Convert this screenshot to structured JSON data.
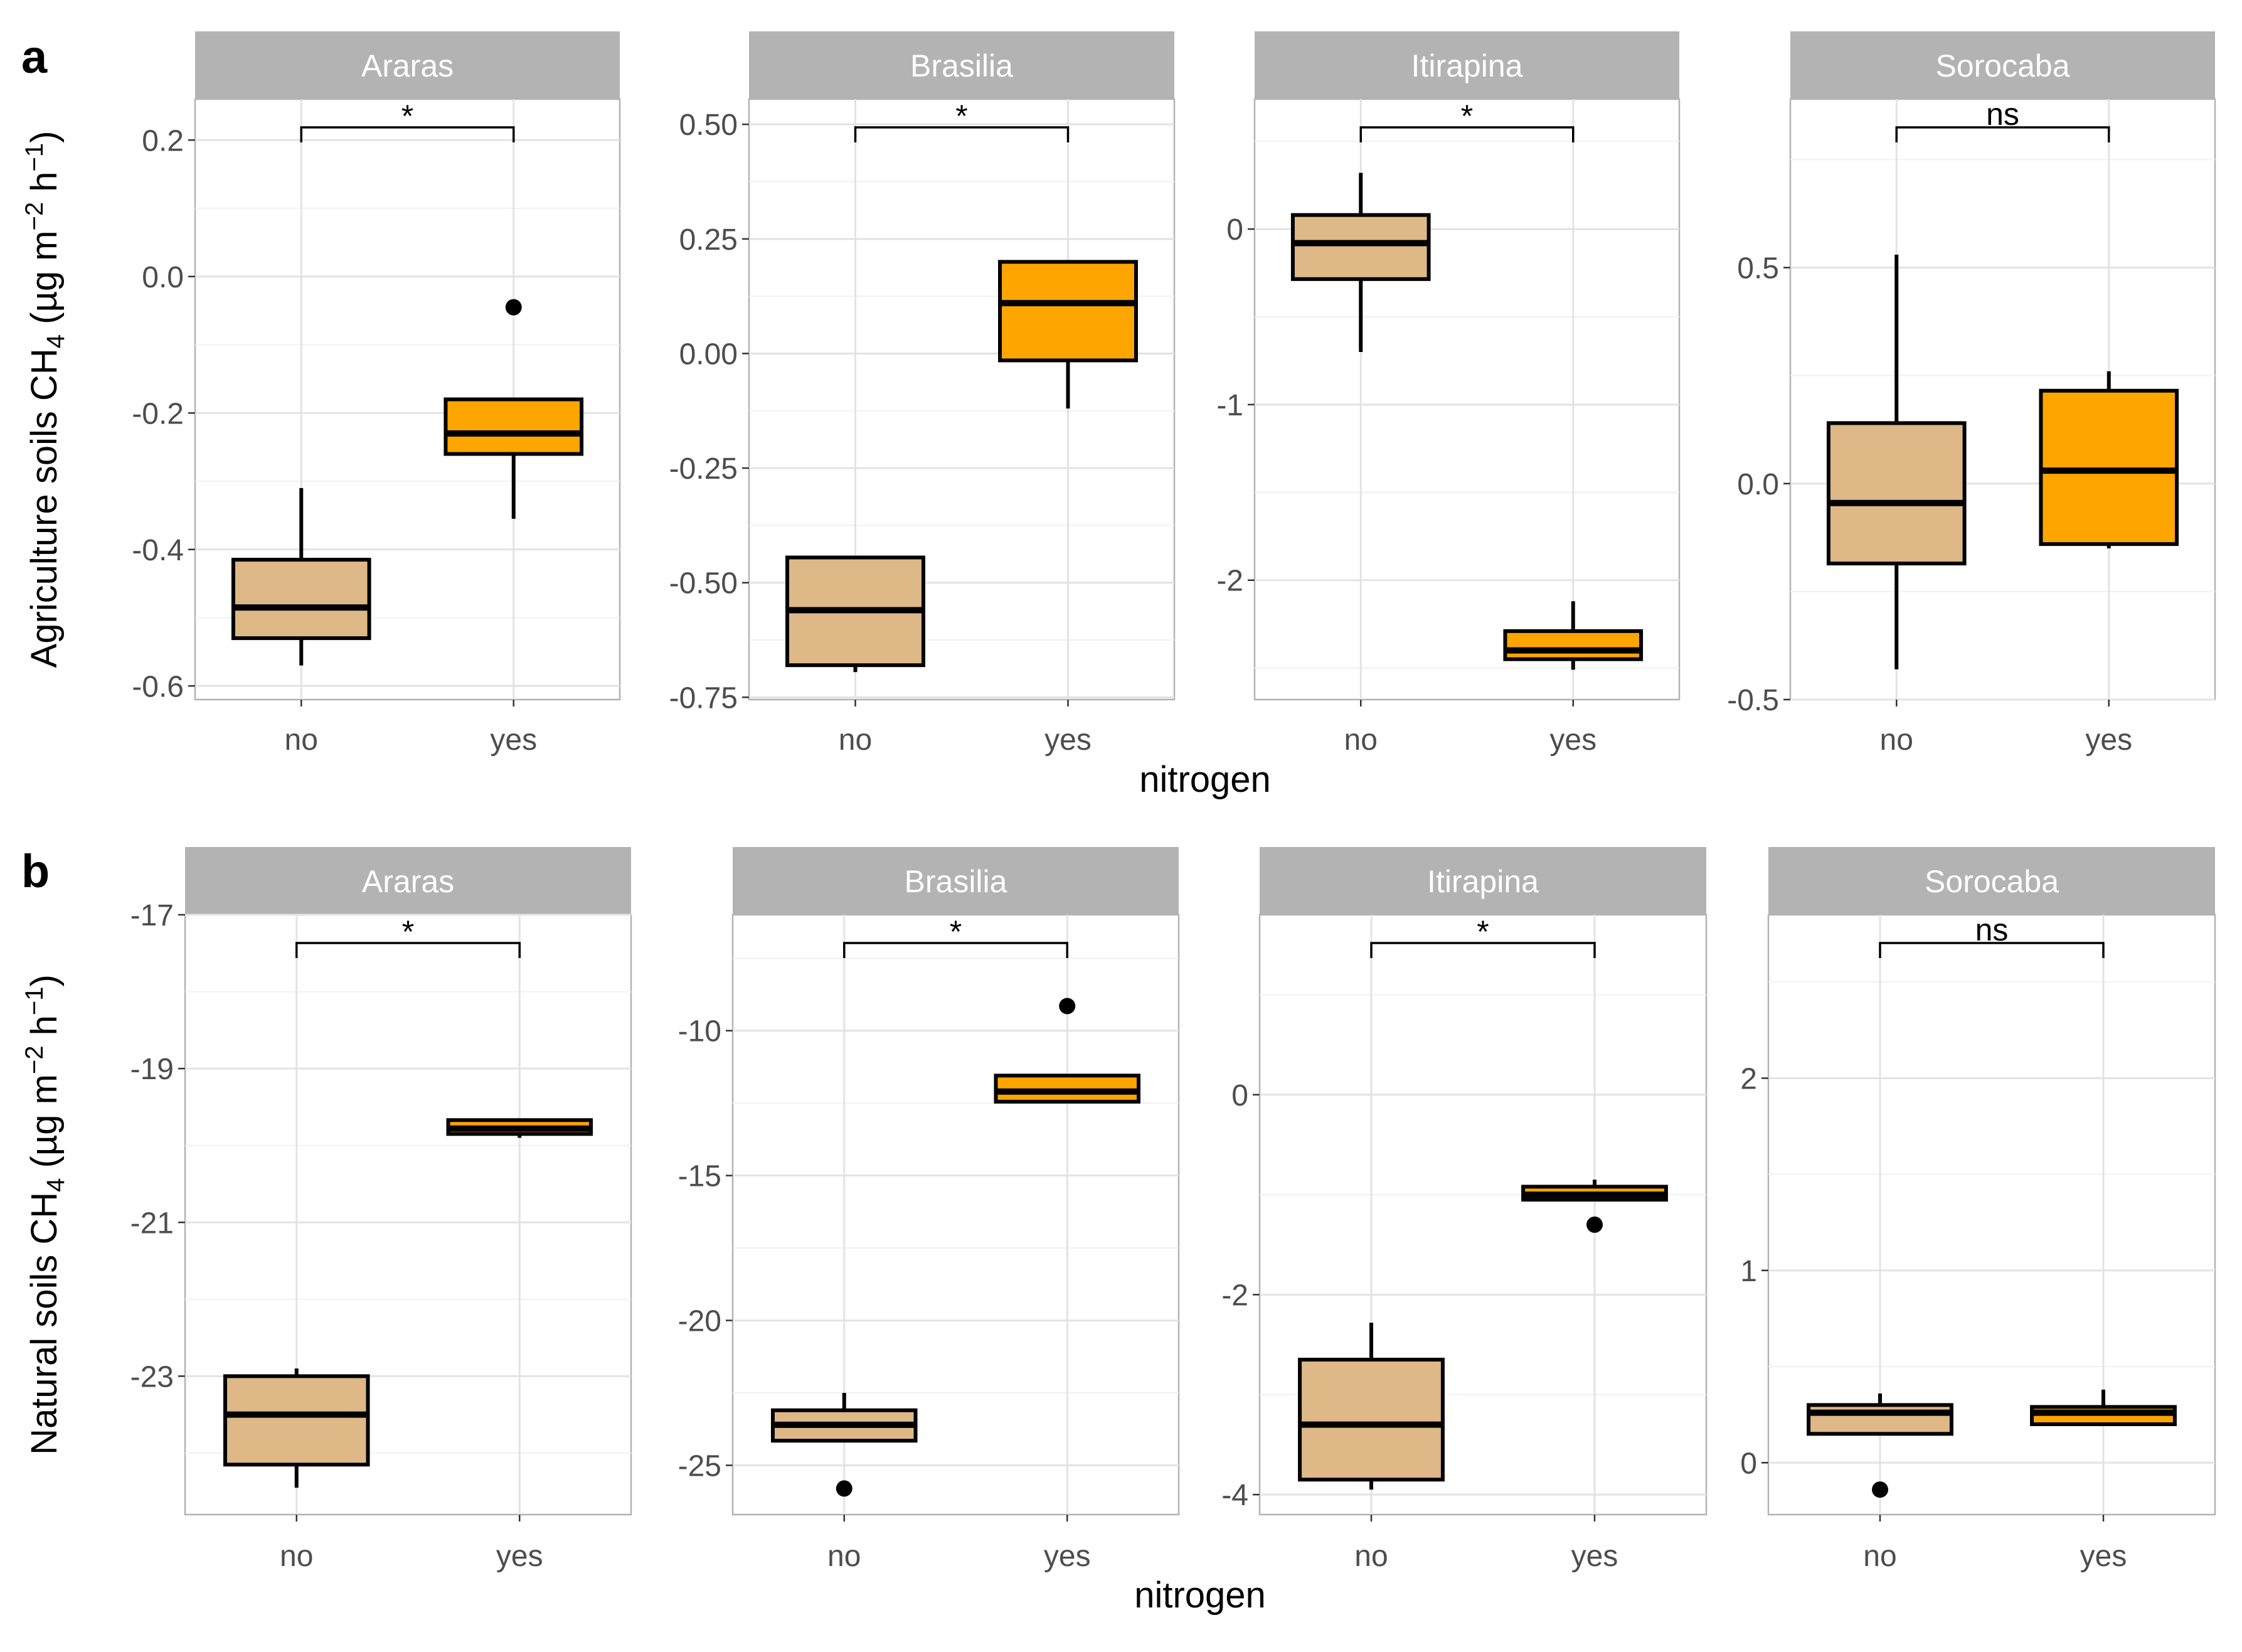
{
  "chart_data": [
    {
      "type": "box",
      "panel_label": "a",
      "ylabel": "Agriculture soils CH4 (µg m−2 h−1)",
      "xlabel": "nitrogen",
      "categories": [
        "no",
        "yes"
      ],
      "facets": [
        {
          "title": "Araras",
          "ylim": [
            -0.62,
            0.26
          ],
          "yticks": [
            -0.6,
            -0.4,
            -0.2,
            0.0,
            0.2
          ],
          "ytick_labels": [
            "-0.6",
            "-0.4",
            "-0.2",
            "0.0",
            "0.2"
          ],
          "groups": [
            {
              "nitrogen": "no",
              "min": -0.57,
              "q1": -0.53,
              "median": -0.485,
              "q3": -0.415,
              "max": -0.31,
              "outliers": []
            },
            {
              "nitrogen": "yes",
              "min": -0.355,
              "q1": -0.26,
              "median": -0.23,
              "q3": -0.18,
              "max": -0.18,
              "outliers": [
                -0.045
              ]
            }
          ],
          "significance": "*"
        },
        {
          "title": "Brasilia",
          "ylim": [
            -0.755,
            0.555
          ],
          "yticks": [
            -0.75,
            -0.5,
            -0.25,
            0.0,
            0.25,
            0.5
          ],
          "ytick_labels": [
            "-0.75",
            "-0.50",
            "-0.25",
            "0.00",
            "0.25",
            "0.50"
          ],
          "groups": [
            {
              "nitrogen": "no",
              "min": -0.695,
              "q1": -0.68,
              "median": -0.56,
              "q3": -0.445,
              "max": -0.445,
              "outliers": []
            },
            {
              "nitrogen": "yes",
              "min": -0.12,
              "q1": -0.015,
              "median": 0.11,
              "q3": 0.2,
              "max": 0.2,
              "outliers": []
            }
          ],
          "significance": "*"
        },
        {
          "title": "Itirapina",
          "ylim": [
            -2.68,
            0.74
          ],
          "yticks": [
            -2,
            -1,
            0
          ],
          "ytick_labels": [
            "-2",
            "-1",
            "0"
          ],
          "groups": [
            {
              "nitrogen": "no",
              "min": -0.7,
              "q1": -0.285,
              "median": -0.08,
              "q3": 0.08,
              "max": 0.32,
              "outliers": []
            },
            {
              "nitrogen": "yes",
              "min": -2.51,
              "q1": -2.45,
              "median": -2.4,
              "q3": -2.29,
              "max": -2.12,
              "outliers": []
            }
          ],
          "significance": "*"
        },
        {
          "title": "Sorocaba",
          "ylim": [
            -0.5,
            0.89
          ],
          "yticks": [
            -0.5,
            0.0,
            0.5
          ],
          "ytick_labels": [
            "-0.5",
            "0.0",
            "0.5"
          ],
          "groups": [
            {
              "nitrogen": "no",
              "min": -0.43,
              "q1": -0.185,
              "median": -0.045,
              "q3": 0.14,
              "max": 0.53,
              "outliers": []
            },
            {
              "nitrogen": "yes",
              "min": -0.15,
              "q1": -0.14,
              "median": 0.03,
              "q3": 0.215,
              "max": 0.26,
              "outliers": []
            }
          ],
          "significance": "ns"
        }
      ]
    },
    {
      "type": "box",
      "panel_label": "b",
      "ylabel": "Natural soils CH4 (µg m−2 h−1)",
      "xlabel": "nitrogen",
      "categories": [
        "no",
        "yes"
      ],
      "facets": [
        {
          "title": "Araras",
          "ylim": [
            -24.8,
            -17.0
          ],
          "yticks": [
            -23,
            -21,
            -19,
            -17
          ],
          "ytick_labels": [
            "-23",
            "-21",
            "-19",
            "-17"
          ],
          "groups": [
            {
              "nitrogen": "no",
              "min": -24.45,
              "q1": -24.15,
              "median": -23.5,
              "q3": -23.0,
              "max": -22.9,
              "outliers": []
            },
            {
              "nitrogen": "yes",
              "min": -19.9,
              "q1": -19.85,
              "median": -19.78,
              "q3": -19.67,
              "max": -19.67,
              "outliers": []
            }
          ],
          "significance": "*"
        },
        {
          "title": "Brasilia",
          "ylim": [
            -26.7,
            -6.0
          ],
          "yticks": [
            -25,
            -20,
            -15,
            -10
          ],
          "ytick_labels": [
            "-25",
            "-20",
            "-15",
            "-10"
          ],
          "groups": [
            {
              "nitrogen": "no",
              "min": -24.2,
              "q1": -24.15,
              "median": -23.6,
              "q3": -23.1,
              "max": -22.5,
              "outliers": [
                -25.8
              ]
            },
            {
              "nitrogen": "yes",
              "min": -12.5,
              "q1": -12.45,
              "median": -12.1,
              "q3": -11.55,
              "max": -11.55,
              "outliers": [
                -9.15
              ]
            }
          ],
          "significance": "*"
        },
        {
          "title": "Itirapina",
          "ylim": [
            -4.2,
            1.8
          ],
          "yticks": [
            -4,
            -2,
            0
          ],
          "ytick_labels": [
            "-4",
            "-2",
            "0"
          ],
          "groups": [
            {
              "nitrogen": "no",
              "min": -3.95,
              "q1": -3.85,
              "median": -3.3,
              "q3": -2.65,
              "max": -2.28,
              "outliers": []
            },
            {
              "nitrogen": "yes",
              "min": -1.05,
              "q1": -1.05,
              "median": -1.0,
              "q3": -0.92,
              "max": -0.85,
              "outliers": [
                -1.3
              ]
            }
          ],
          "significance": "*"
        },
        {
          "title": "Sorocaba",
          "ylim": [
            -0.27,
            2.85
          ],
          "yticks": [
            0,
            1,
            2
          ],
          "ytick_labels": [
            "0",
            "1",
            "2"
          ],
          "groups": [
            {
              "nitrogen": "no",
              "min": 0.15,
              "q1": 0.15,
              "median": 0.26,
              "q3": 0.3,
              "max": 0.36,
              "outliers": [
                -0.14
              ]
            },
            {
              "nitrogen": "yes",
              "min": 0.2,
              "q1": 0.2,
              "median": 0.26,
              "q3": 0.29,
              "max": 0.38,
              "outliers": []
            }
          ],
          "significance": "ns"
        }
      ]
    }
  ],
  "colors": {
    "no": "#deb887",
    "yes": "#ffa500",
    "strip": "#b3b3b3"
  }
}
